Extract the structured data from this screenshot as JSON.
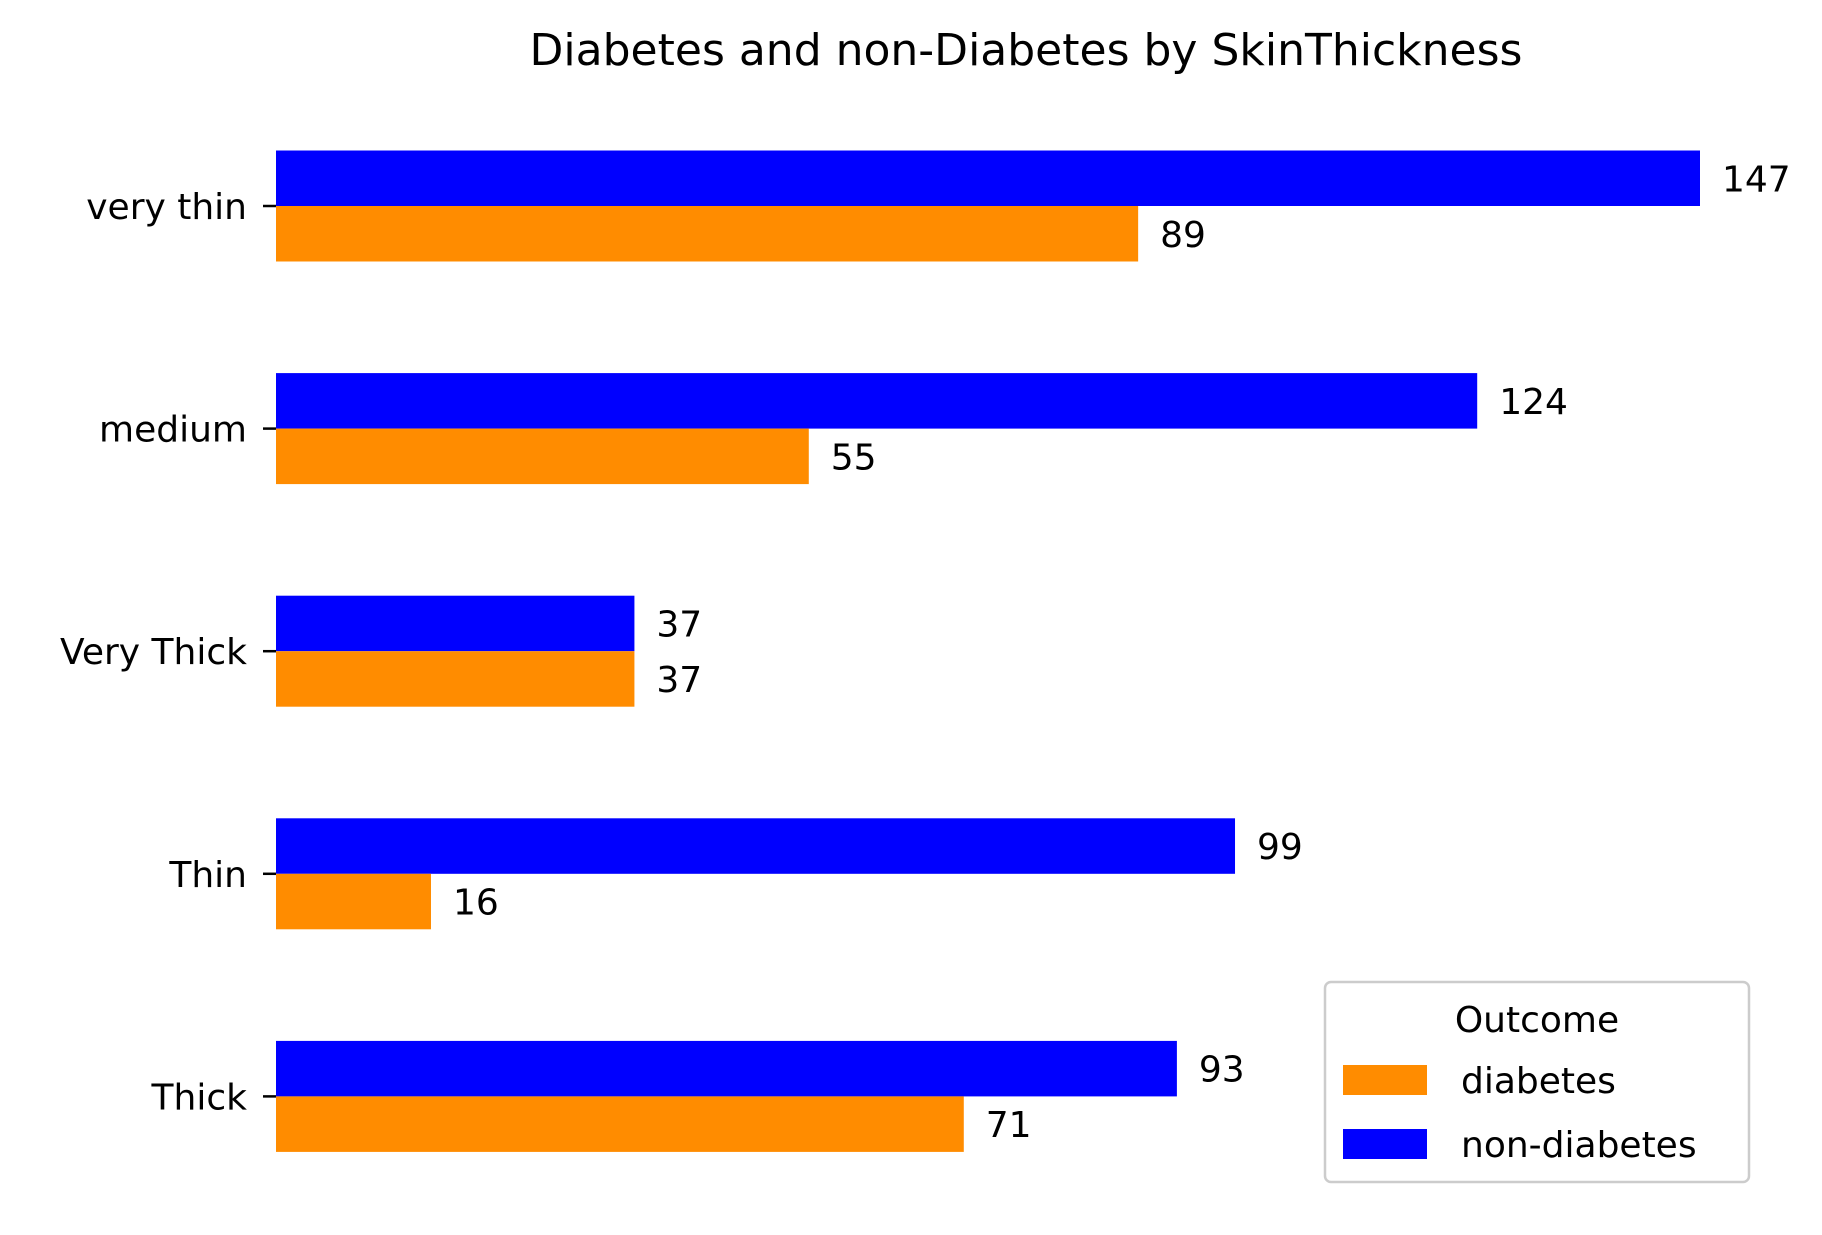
{
  "chart_data": {
    "type": "bar",
    "orientation": "horizontal",
    "title": "Diabetes and non-Diabetes by SkinThickness",
    "xlabel": "",
    "ylabel": "",
    "categories": [
      "very thin",
      "medium",
      "Very Thick",
      "Thin",
      "Thick"
    ],
    "series": [
      {
        "name": "non-diabetes",
        "color": "#0000ff",
        "values": [
          147,
          124,
          37,
          99,
          93
        ]
      },
      {
        "name": "diabetes",
        "color": "#ff8c00",
        "values": [
          89,
          55,
          37,
          16,
          71
        ]
      }
    ],
    "xlim": [
      0,
      147
    ],
    "grid": false,
    "data_labels": true,
    "x_axis_visible": false,
    "legend": {
      "title": "Outcome",
      "placement": "lower-right",
      "entries": [
        {
          "label": "diabetes",
          "color": "#ff8c00"
        },
        {
          "label": "non-diabetes",
          "color": "#0000ff"
        }
      ]
    }
  }
}
